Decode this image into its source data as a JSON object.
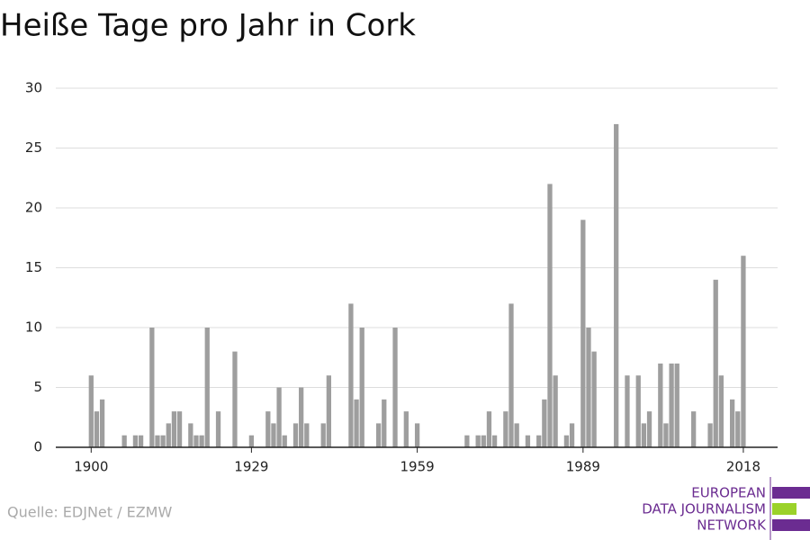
{
  "chart_data": {
    "type": "bar",
    "title": "Heiße Tage pro Jahr in Cork",
    "source": "Quelle: EDJNet / EZMW",
    "logo": [
      "EUROPEAN",
      "DATA JOURNALISM",
      "NETWORK"
    ],
    "color": "#9e9e9e",
    "x": [
      1900,
      1901,
      1902,
      1903,
      1904,
      1905,
      1906,
      1907,
      1908,
      1909,
      1910,
      1911,
      1912,
      1913,
      1914,
      1915,
      1916,
      1917,
      1918,
      1919,
      1920,
      1921,
      1922,
      1923,
      1924,
      1925,
      1926,
      1927,
      1928,
      1929,
      1930,
      1931,
      1932,
      1933,
      1934,
      1935,
      1936,
      1937,
      1938,
      1939,
      1940,
      1941,
      1942,
      1943,
      1944,
      1945,
      1946,
      1947,
      1948,
      1949,
      1950,
      1951,
      1952,
      1953,
      1954,
      1955,
      1956,
      1957,
      1958,
      1959,
      1960,
      1961,
      1962,
      1963,
      1964,
      1965,
      1966,
      1967,
      1968,
      1969,
      1970,
      1971,
      1972,
      1973,
      1974,
      1975,
      1976,
      1977,
      1978,
      1979,
      1980,
      1981,
      1982,
      1983,
      1984,
      1985,
      1986,
      1987,
      1988,
      1989,
      1990,
      1991,
      1992,
      1993,
      1994,
      1995,
      1996,
      1997,
      1998,
      1999,
      2000,
      2001,
      2002,
      2003,
      2004,
      2005,
      2006,
      2007,
      2008,
      2009,
      2010,
      2011,
      2012,
      2013,
      2014,
      2015,
      2016,
      2017,
      2018
    ],
    "values": [
      6,
      3,
      4,
      0,
      0,
      0,
      1,
      0,
      1,
      1,
      0,
      10,
      1,
      1,
      2,
      3,
      3,
      0,
      2,
      1,
      1,
      10,
      0,
      3,
      0,
      0,
      8,
      0,
      0,
      1,
      0,
      0,
      3,
      2,
      5,
      1,
      0,
      2,
      5,
      2,
      0,
      0,
      2,
      6,
      0,
      0,
      0,
      12,
      4,
      10,
      0,
      0,
      2,
      4,
      0,
      10,
      0,
      3,
      0,
      2,
      0,
      0,
      0,
      0,
      0,
      0,
      0,
      0,
      1,
      0,
      1,
      1,
      3,
      1,
      0,
      3,
      12,
      2,
      0,
      1,
      0,
      1,
      4,
      22,
      6,
      0,
      1,
      2,
      0,
      19,
      10,
      8,
      0,
      0,
      0,
      27,
      0,
      6,
      0,
      6,
      2,
      3,
      0,
      7,
      2,
      7,
      7,
      0,
      0,
      3,
      0,
      0,
      2,
      14,
      6,
      0,
      4,
      3,
      16
    ],
    "xlim": [
      1893.6,
      2024.2
    ],
    "xticks": [
      1900,
      1929,
      1959,
      1989,
      2018
    ],
    "ylim": [
      0,
      30
    ],
    "yticks": [
      0,
      5,
      10,
      15,
      20,
      25,
      30
    ],
    "grid": true
  }
}
